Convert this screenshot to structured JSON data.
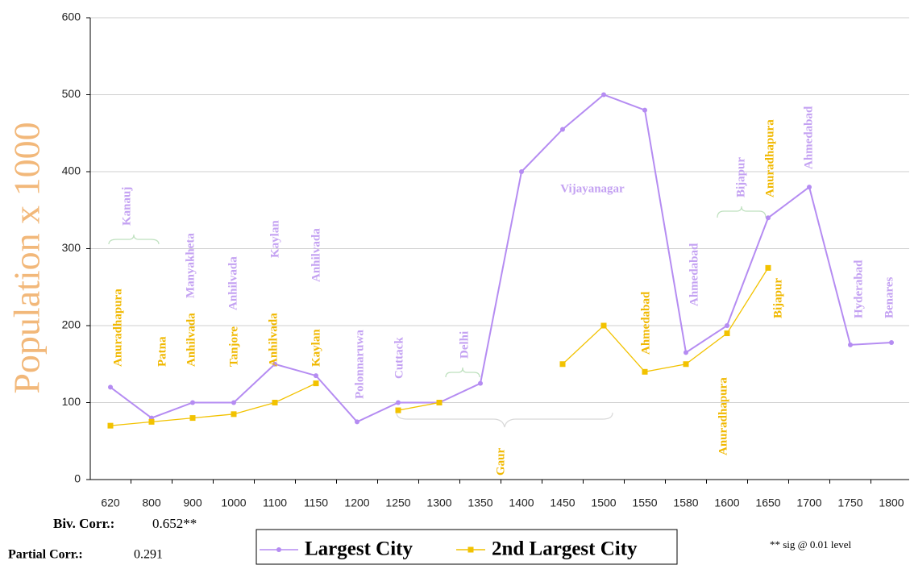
{
  "chart_data": {
    "type": "line",
    "ylabel": "Population x 1000",
    "categories": [
      "620",
      "800",
      "900",
      "1000",
      "1100",
      "1150",
      "1200",
      "1250",
      "1300",
      "1350",
      "1400",
      "1450",
      "1500",
      "1550",
      "1580",
      "1600",
      "1650",
      "1700",
      "1750",
      "1800"
    ],
    "series": [
      {
        "name": "Largest City",
        "color": "#b58cf2",
        "marker": "circle",
        "values": [
          120,
          80,
          100,
          100,
          150,
          135,
          75,
          100,
          100,
          125,
          400,
          455,
          500,
          480,
          165,
          200,
          340,
          380,
          175,
          178
        ]
      },
      {
        "name": "2nd Largest City",
        "color": "#f2c200",
        "marker": "square",
        "values": [
          70,
          75,
          80,
          85,
          100,
          125,
          null,
          90,
          100,
          null,
          null,
          150,
          200,
          140,
          150,
          190,
          275,
          null,
          null,
          null
        ]
      }
    ],
    "ylim": [
      0,
      600
    ],
    "yticks": [
      0,
      100,
      200,
      300,
      400,
      500,
      600
    ],
    "grid": true,
    "annotations": [
      {
        "text": "Kanauj",
        "color": "#c4a2f2"
      },
      {
        "text": "Manyakheta",
        "color": "#c4a2f2"
      },
      {
        "text": "Anhilvada",
        "color": "#c4a2f2"
      },
      {
        "text": "Kaylan",
        "color": "#c4a2f2"
      },
      {
        "text": "Anhilvada",
        "color": "#c4a2f2"
      },
      {
        "text": "Polonnaruwa",
        "color": "#c4a2f2"
      },
      {
        "text": "Cuttack",
        "color": "#c4a2f2"
      },
      {
        "text": "Delhi",
        "color": "#c4a2f2"
      },
      {
        "text": "Vijayanagar",
        "color": "#c4a2f2"
      },
      {
        "text": "Ahmedabad",
        "color": "#c4a2f2"
      },
      {
        "text": "Bijapur",
        "color": "#c4a2f2"
      },
      {
        "text": "Ahmedabad",
        "color": "#c4a2f2"
      },
      {
        "text": "Hyderabad",
        "color": "#c4a2f2"
      },
      {
        "text": "Benares",
        "color": "#c4a2f2"
      },
      {
        "text": "Anuradhapura",
        "color": "#f0b800"
      },
      {
        "text": "Patna",
        "color": "#f0b800"
      },
      {
        "text": "Anhilvada",
        "color": "#f0b800"
      },
      {
        "text": "Tanjore",
        "color": "#f0b800"
      },
      {
        "text": "Anhilvada",
        "color": "#f0b800"
      },
      {
        "text": "Kaylan",
        "color": "#f0b800"
      },
      {
        "text": "Gaur",
        "color": "#f0b800"
      },
      {
        "text": "Ahmedabad",
        "color": "#f0b800"
      },
      {
        "text": "Anuradhapura",
        "color": "#f0b800"
      },
      {
        "text": "Anuradhapura",
        "color": "#f0b800"
      },
      {
        "text": "Bijapur",
        "color": "#f0b800"
      }
    ],
    "biv_corr_label": "Biv. Corr.:",
    "biv_corr": "0.652**",
    "partial_corr_label": "Partial Corr.:",
    "partial_corr": "0.291",
    "footnote": "** sig @ 0.01 level"
  }
}
